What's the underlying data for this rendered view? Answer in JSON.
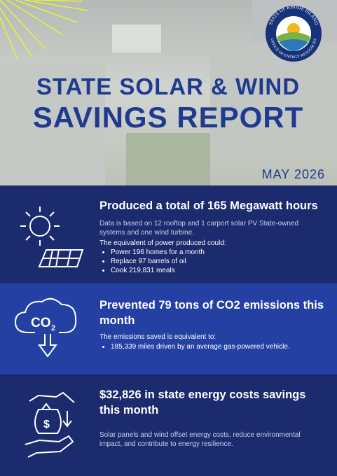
{
  "header": {
    "title_line1": "STATE SOLAR & WIND",
    "title_line2": "SAVINGS REPORT",
    "date": "MAY 2026",
    "logo": {
      "top": "STATE OF RHODE ISLAND",
      "bottom": "OFFICE OF ENERGY RESOURCES"
    }
  },
  "sections": [
    {
      "heading": "Produced a total of 165 Megawatt hours",
      "note": "Data is based on 12 rooftop and 1 carport solar PV State-owned systems and one wind turbine.",
      "lead": "The equivalent of power produced could:",
      "bullets": [
        "Power 196 homes for a month",
        "Replace 97 barrels of oil",
        "Cook 219,831 meals"
      ]
    },
    {
      "heading": "Prevented 79 tons of CO2 emissions this month",
      "icon": {
        "main": "CO",
        "sub": "2"
      },
      "lead": "The emissions saved is equivalent to:",
      "bullets": [
        "185,339 miles driven by an average gas-powered vehicle."
      ]
    },
    {
      "heading": "$32,826 in state energy costs savings this month",
      "note": "Solar panels and wind offset energy costs, reduce environmental impact, and contribute to energy resilience."
    }
  ]
}
